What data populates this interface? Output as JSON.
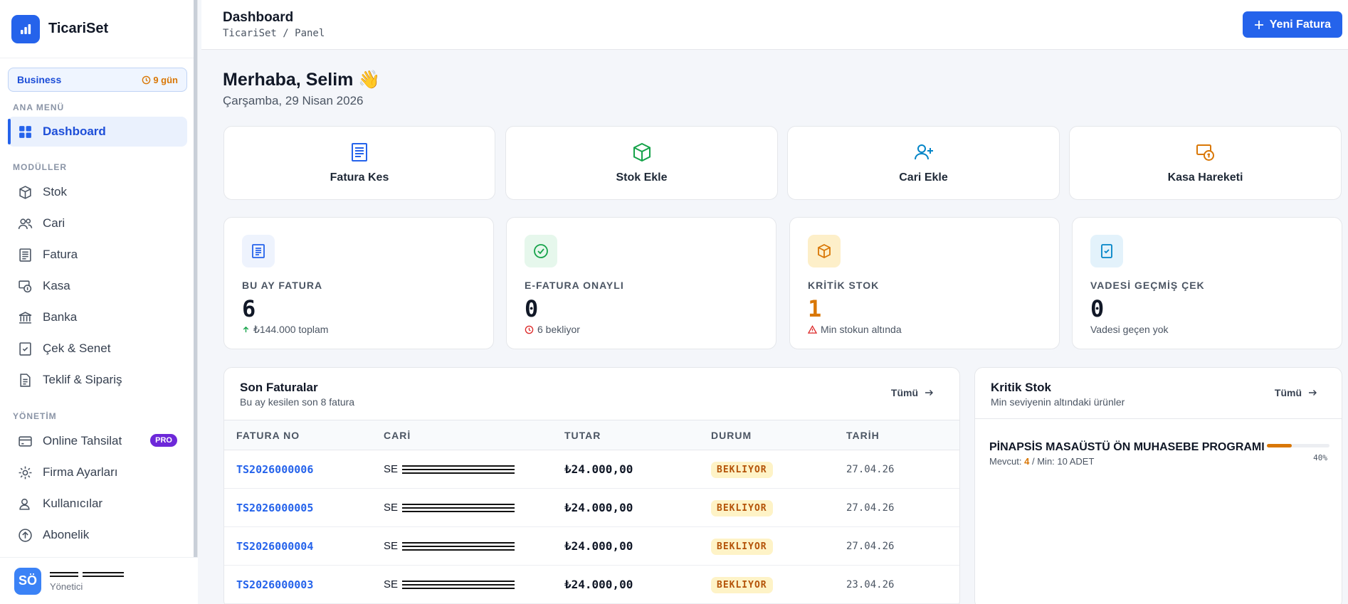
{
  "app": {
    "name": "TicariSet"
  },
  "plan": {
    "name": "Business",
    "days_left": "9 gün"
  },
  "sidebar": {
    "sections": [
      "ANA MENÜ",
      "MODÜLLER",
      "YÖNETİM"
    ],
    "main_item": {
      "label": "Dashboard",
      "icon": "grid-icon"
    },
    "modules": [
      {
        "label": "Stok",
        "icon": "box-icon"
      },
      {
        "label": "Cari",
        "icon": "users-icon"
      },
      {
        "label": "Fatura",
        "icon": "invoice-icon"
      },
      {
        "label": "Kasa",
        "icon": "cash-icon"
      },
      {
        "label": "Banka",
        "icon": "bank-icon"
      },
      {
        "label": "Çek & Senet",
        "icon": "check-document-icon"
      },
      {
        "label": "Teklif & Sipariş",
        "icon": "document-icon"
      }
    ],
    "management": [
      {
        "label": "Online Tahsilat",
        "icon": "card-icon",
        "badge": "PRO"
      },
      {
        "label": "Firma Ayarları",
        "icon": "gear-icon"
      },
      {
        "label": "Kullanıcılar",
        "icon": "user-icon"
      },
      {
        "label": "Abonelik",
        "icon": "arrow-up-circle-icon"
      }
    ]
  },
  "user": {
    "initials": "SÖ",
    "role": "Yönetici"
  },
  "header": {
    "title": "Dashboard",
    "breadcrumb": "TicariSet / Panel",
    "new_invoice": "Yeni Fatura"
  },
  "greeting": {
    "text": "Merhaba, Selim 👋",
    "date": "Çarşamba, 29 Nisan 2026"
  },
  "quick_actions": [
    {
      "label": "Fatura Kes",
      "icon": "invoice-icon",
      "color": "#2563eb"
    },
    {
      "label": "Stok Ekle",
      "icon": "box-icon",
      "color": "#16a34a"
    },
    {
      "label": "Cari Ekle",
      "icon": "user-plus-icon",
      "color": "#0284c7"
    },
    {
      "label": "Kasa Hareketi",
      "icon": "cash-icon",
      "color": "#d97706"
    }
  ],
  "stats": [
    {
      "label": "BU AY FATURA",
      "value": "6",
      "sub": "₺144.000 toplam",
      "color": "#111827"
    },
    {
      "label": "E-FATURA ONAYLI",
      "value": "0",
      "sub": "6 bekliyor",
      "color": "#111827"
    },
    {
      "label": "KRİTİK STOK",
      "value": "1",
      "sub": "Min stokun altında",
      "color": "#d97706"
    },
    {
      "label": "VADESİ GEÇMİŞ ÇEK",
      "value": "0",
      "sub": "Vadesi geçen yok",
      "color": "#111827"
    }
  ],
  "invoices_panel": {
    "title": "Son Faturalar",
    "subtitle": "Bu ay kesilen son 8 fatura",
    "all_link": "Tümü",
    "columns": [
      "FATURA NO",
      "CARİ",
      "TUTAR",
      "DURUM",
      "TARİH"
    ],
    "rows": [
      {
        "no": "TS2026000006",
        "cari": "SE",
        "amount": "₺24.000,00",
        "status": "BEKLIYOR",
        "date": "27.04.26"
      },
      {
        "no": "TS2026000005",
        "cari": "SE",
        "amount": "₺24.000,00",
        "status": "BEKLIYOR",
        "date": "27.04.26"
      },
      {
        "no": "TS2026000004",
        "cari": "SE",
        "amount": "₺24.000,00",
        "status": "BEKLIYOR",
        "date": "27.04.26"
      },
      {
        "no": "TS2026000003",
        "cari": "SE",
        "amount": "₺24.000,00",
        "status": "BEKLIYOR",
        "date": "23.04.26"
      }
    ]
  },
  "critical_panel": {
    "title": "Kritik Stok",
    "subtitle": "Min seviyenin altındaki ürünler",
    "all_link": "Tümü",
    "items": [
      {
        "name": "PİNAPSİS MASAÜSTÜ ÖN MUHASEBE PROGRAMI",
        "stock_prefix": "Mevcut:",
        "stock": "4",
        "min_text": "/ Min: 10 ADET",
        "percent": 40,
        "percent_label": "40%"
      }
    ]
  }
}
